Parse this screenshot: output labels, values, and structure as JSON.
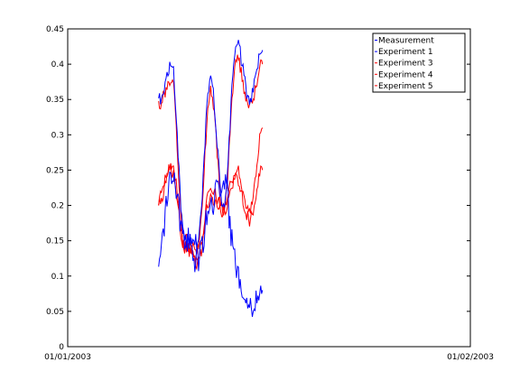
{
  "chart_data": {
    "type": "line",
    "title": "",
    "xlabel": "",
    "ylabel": "",
    "x_tick_labels": [
      "01/01/2003",
      "01/02/2003"
    ],
    "xlim": [
      "2003-01-01",
      "2003-02-01"
    ],
    "ylim": [
      0,
      0.45
    ],
    "y_ticks": [
      0,
      0.05,
      0.1,
      0.15,
      0.2,
      0.25,
      0.3,
      0.35,
      0.4,
      0.45
    ],
    "y_tick_labels": [
      "0",
      "0.05",
      "0.1",
      "0.15",
      "0.2",
      "0.25",
      "0.3",
      "0.35",
      "0.4",
      "0.45"
    ],
    "legend_position": "top-right",
    "grid": false,
    "x": [
      "2003-01-08",
      "2003-01-09",
      "2003-01-10",
      "2003-01-11",
      "2003-01-12",
      "2003-01-13",
      "2003-01-14",
      "2003-01-15",
      "2003-01-16"
    ],
    "series": [
      {
        "name": "Measurement",
        "color": "#0000ff",
        "style": "solid",
        "values": [
          0.13,
          0.25,
          0.16,
          0.12,
          0.2,
          0.24,
          0.11,
          0.06,
          0.08
        ]
      },
      {
        "name": "Experiment 1",
        "color": "#0000ff",
        "style": "solid",
        "values": [
          0.35,
          0.4,
          0.15,
          0.15,
          0.38,
          0.2,
          0.43,
          0.35,
          0.42
        ]
      },
      {
        "name": "Experiment 3",
        "color": "#ff0000",
        "style": "solid",
        "values": [
          0.34,
          0.38,
          0.14,
          0.14,
          0.36,
          0.19,
          0.41,
          0.34,
          0.4
        ]
      },
      {
        "name": "Experiment 4",
        "color": "#ff0000",
        "style": "solid",
        "values": [
          0.21,
          0.26,
          0.15,
          0.13,
          0.22,
          0.2,
          0.25,
          0.19,
          0.31
        ]
      },
      {
        "name": "Experiment 5",
        "color": "#ff0000",
        "style": "solid",
        "values": [
          0.2,
          0.25,
          0.14,
          0.12,
          0.21,
          0.19,
          0.24,
          0.18,
          0.25
        ]
      }
    ]
  }
}
